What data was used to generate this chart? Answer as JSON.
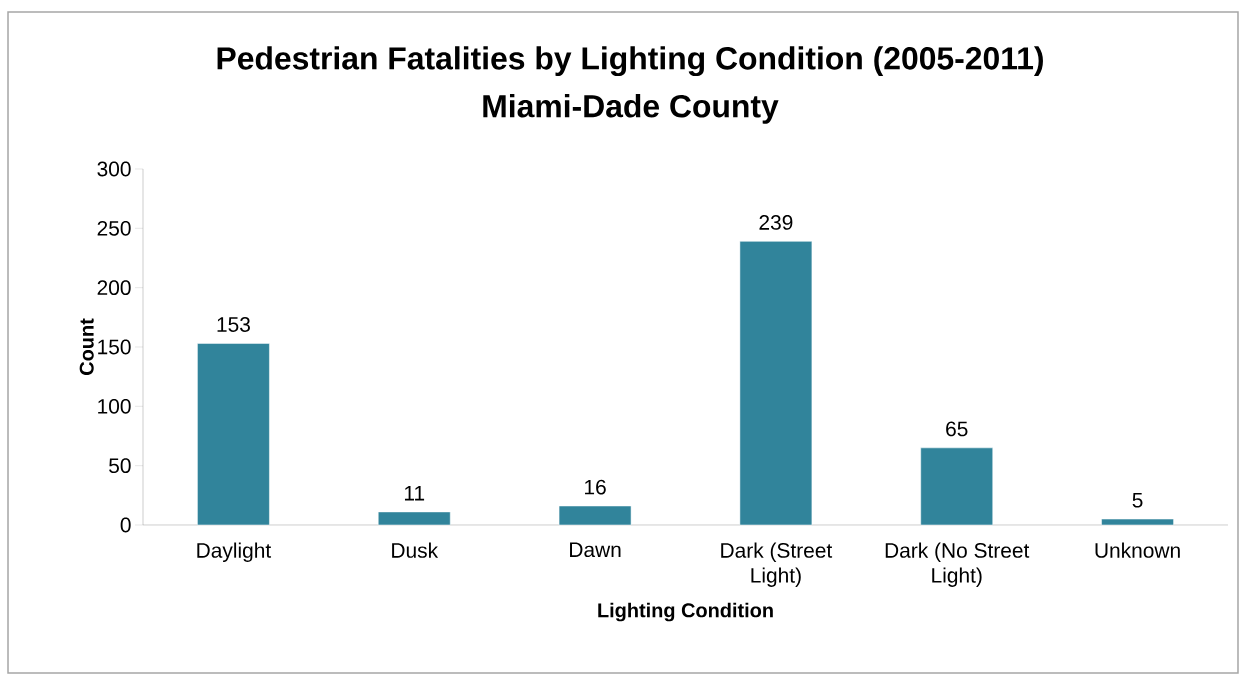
{
  "chart_data": {
    "type": "bar",
    "title": "Pedestrian Fatalities by Lighting Condition (2005-2011)\nMiami-Dade County",
    "xlabel": "Lighting Condition",
    "ylabel": "Count",
    "categories": [
      "Daylight",
      "Dusk",
      "Dawn",
      "Dark (Street Light)",
      "Dark (No Street Light)",
      "Unknown"
    ],
    "values": [
      153,
      11,
      16,
      239,
      65,
      5
    ],
    "color": "#31849b",
    "ylim": [
      0,
      300
    ],
    "yticks": [
      0,
      50,
      100,
      150,
      200,
      250,
      300
    ],
    "grid": false,
    "data_labels": true
  }
}
